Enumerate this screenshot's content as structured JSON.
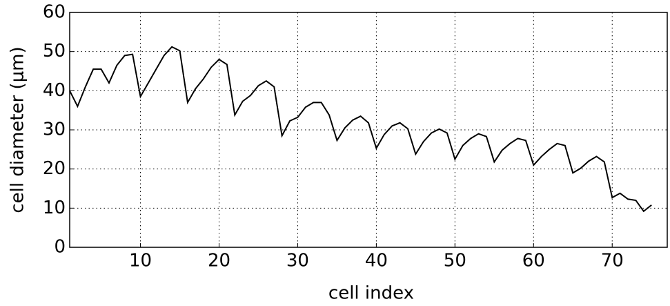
{
  "chart_data": {
    "type": "line",
    "xlabel": "cell index",
    "ylabel": "cell diameter (μm)",
    "x": [
      1,
      2,
      3,
      4,
      5,
      6,
      7,
      8,
      9,
      10,
      11,
      12,
      13,
      14,
      15,
      16,
      17,
      18,
      19,
      20,
      21,
      22,
      23,
      24,
      25,
      26,
      27,
      28,
      29,
      30,
      31,
      32,
      33,
      34,
      35,
      36,
      37,
      38,
      39,
      40,
      41,
      42,
      43,
      44,
      45,
      46,
      47,
      48,
      49,
      50,
      51,
      52,
      53,
      54,
      55,
      56,
      57,
      58,
      59,
      60,
      61,
      62,
      63,
      64,
      65,
      66,
      67,
      68,
      69,
      70,
      71,
      72,
      73,
      74,
      75
    ],
    "series": [
      {
        "color": "#000000",
        "values": [
          40,
          36,
          41,
          45.5,
          45.5,
          42,
          46.5,
          49,
          49.3,
          38.5,
          42,
          45.5,
          49,
          51.2,
          50.2,
          37,
          40.5,
          43,
          46,
          48,
          46.7,
          33.8,
          37.3,
          38.8,
          41.3,
          42.5,
          41,
          28.5,
          32.3,
          33.2,
          35.8,
          37,
          37,
          33.8,
          27.3,
          30.5,
          32.5,
          33.5,
          31.8,
          25.3,
          28.8,
          31,
          31.8,
          30.3,
          23.8,
          27,
          29.2,
          30.2,
          29.2,
          22.5,
          26,
          27.8,
          29,
          28.3,
          21.8,
          24.8,
          26.5,
          27.8,
          27.3,
          21,
          23.2,
          25,
          26.5,
          26,
          19,
          20.2,
          22,
          23.2,
          21.8,
          12.7,
          13.8,
          12.3,
          12,
          9.2,
          10.8
        ]
      }
    ],
    "xlim": [
      1,
      77
    ],
    "ylim": [
      0,
      60
    ],
    "xticks": [
      10,
      20,
      30,
      40,
      50,
      60,
      70
    ],
    "yticks": [
      0,
      10,
      20,
      30,
      40,
      50,
      60
    ],
    "grid": true
  }
}
